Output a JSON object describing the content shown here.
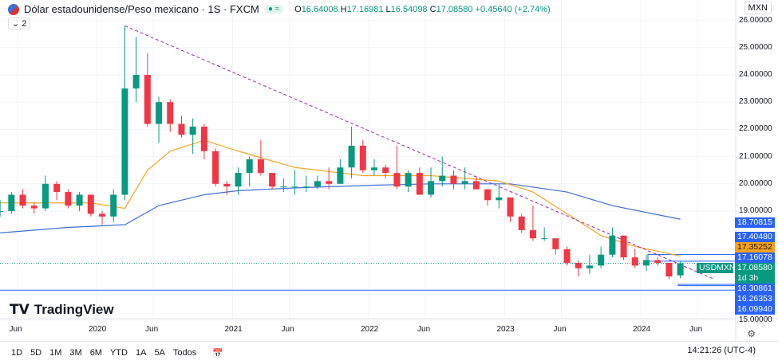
{
  "header": {
    "title": "Dólar estadounidense/Peso mexicano · 1S · FXCM",
    "o": "16.64008",
    "h": "17.16981",
    "l": "16.54098",
    "c": "17.08580",
    "change": "+0.45640 (+2.74%)",
    "collapse": "2",
    "currency": "MXN"
  },
  "symbol_tag": "USDMXN",
  "countdown": "1d 3h",
  "brand": "TradingView",
  "price_labels": [
    {
      "v": 18.70815,
      "t": "18.70815",
      "color": "#2962ff"
    },
    {
      "v": 17.4048,
      "t": "17.40480",
      "color": "#2962ff"
    },
    {
      "v": 17.35252,
      "t": "17.35252",
      "color": "#f7a21b"
    },
    {
      "v": 17.16078,
      "t": "17.16078",
      "color": "#2962ff"
    },
    {
      "v": 17.0858,
      "t": "17.08580",
      "color": "#089981"
    },
    {
      "v": 16.30861,
      "t": "16.30861",
      "color": "#2962ff"
    },
    {
      "v": 16.26353,
      "t": "16.26353",
      "color": "#2962ff"
    },
    {
      "v": 16.0994,
      "t": "16.09940",
      "color": "#2962ff"
    }
  ],
  "toolbar": {
    "ranges": [
      "1D",
      "5D",
      "1M",
      "3M",
      "6M",
      "YTD",
      "1A",
      "5A",
      "Todos"
    ],
    "time": "14:21:26 (UTC-4)"
  },
  "chart_data": {
    "type": "candlestick",
    "ylim": [
      15,
      26.2
    ],
    "y_ticks": [
      "26.00000",
      "25.00000",
      "24.00000",
      "23.00000",
      "22.00000",
      "21.00000",
      "20.00000",
      "19.00000",
      "15.00000"
    ],
    "x_ticks": [
      [
        "Jun",
        "2019-06"
      ],
      [
        "2020",
        "2020-01"
      ],
      [
        "Jun",
        "2020-06"
      ],
      [
        "2021",
        "2021-01"
      ],
      [
        "Jun",
        "2021-06"
      ],
      [
        "2022",
        "2022-01"
      ],
      [
        "Jun",
        "2022-06"
      ],
      [
        "2023",
        "2023-01"
      ],
      [
        "Jun",
        "2023-06"
      ],
      [
        "2024",
        "2024-01"
      ],
      [
        "Jun",
        "2024-06"
      ]
    ],
    "ohlc": [
      [
        "2019-04",
        19.0,
        19.4,
        18.8,
        19.0
      ],
      [
        "2019-05",
        19.0,
        19.7,
        18.9,
        19.6
      ],
      [
        "2019-06",
        19.6,
        19.8,
        19.1,
        19.2
      ],
      [
        "2019-07",
        19.2,
        19.3,
        18.9,
        19.1
      ],
      [
        "2019-08",
        19.1,
        20.3,
        19.0,
        20.0
      ],
      [
        "2019-09",
        20.0,
        20.1,
        19.4,
        19.7
      ],
      [
        "2019-10",
        19.7,
        19.8,
        19.1,
        19.2
      ],
      [
        "2019-11",
        19.2,
        19.7,
        19.0,
        19.6
      ],
      [
        "2019-12",
        19.6,
        19.6,
        18.8,
        18.9
      ],
      [
        "2020-01",
        18.9,
        19.0,
        18.5,
        18.8
      ],
      [
        "2020-02",
        18.8,
        19.8,
        18.6,
        19.6
      ],
      [
        "2020-03",
        19.6,
        25.8,
        19.4,
        23.5
      ],
      [
        "2020-04",
        23.5,
        25.4,
        23.0,
        24.0
      ],
      [
        "2020-05",
        24.0,
        24.8,
        22.1,
        22.2
      ],
      [
        "2020-06",
        22.2,
        23.2,
        21.5,
        23.0
      ],
      [
        "2020-07",
        23.0,
        23.1,
        21.9,
        22.2
      ],
      [
        "2020-08",
        22.2,
        22.5,
        21.7,
        21.8
      ],
      [
        "2020-09",
        21.8,
        22.4,
        21.1,
        22.1
      ],
      [
        "2020-10",
        22.1,
        22.2,
        20.9,
        21.2
      ],
      [
        "2020-11",
        21.2,
        21.3,
        19.9,
        20.0
      ],
      [
        "2020-12",
        20.0,
        20.1,
        19.6,
        19.9
      ],
      [
        "2021-01",
        19.9,
        20.6,
        19.6,
        20.4
      ],
      [
        "2021-02",
        20.4,
        21.0,
        19.9,
        20.9
      ],
      [
        "2021-03",
        20.9,
        21.6,
        20.3,
        20.4
      ],
      [
        "2021-04",
        20.4,
        20.4,
        19.8,
        19.9
      ],
      [
        "2021-05",
        19.9,
        20.2,
        19.7,
        19.9
      ],
      [
        "2021-06",
        19.9,
        20.5,
        19.6,
        19.9
      ],
      [
        "2021-07",
        19.9,
        20.3,
        19.7,
        19.9
      ],
      [
        "2021-08",
        19.9,
        20.3,
        19.8,
        20.1
      ],
      [
        "2021-09",
        20.1,
        20.6,
        19.8,
        20.0
      ],
      [
        "2021-10",
        20.0,
        20.9,
        20.1,
        20.6
      ],
      [
        "2021-11",
        20.6,
        22.1,
        20.2,
        21.4
      ],
      [
        "2021-12",
        21.4,
        21.6,
        20.4,
        20.5
      ],
      [
        "2022-01",
        20.5,
        20.9,
        20.3,
        20.6
      ],
      [
        "2022-02",
        20.6,
        20.7,
        20.2,
        20.4
      ],
      [
        "2022-03",
        20.4,
        21.4,
        19.8,
        19.9
      ],
      [
        "2022-04",
        19.9,
        20.5,
        19.7,
        20.4
      ],
      [
        "2022-05",
        20.4,
        20.6,
        19.6,
        19.6
      ],
      [
        "2022-06",
        19.6,
        20.6,
        19.5,
        20.1
      ],
      [
        "2022-07",
        20.1,
        21.0,
        19.9,
        20.3
      ],
      [
        "2022-08",
        20.3,
        20.5,
        19.8,
        20.0
      ],
      [
        "2022-09",
        20.0,
        20.6,
        19.8,
        20.1
      ],
      [
        "2022-10",
        20.1,
        20.3,
        19.8,
        19.8
      ],
      [
        "2022-11",
        19.8,
        19.8,
        19.2,
        19.4
      ],
      [
        "2022-12",
        19.4,
        20.0,
        19.1,
        19.5
      ],
      [
        "2023-01",
        19.5,
        19.5,
        18.6,
        18.8
      ],
      [
        "2023-02",
        18.8,
        18.9,
        18.2,
        18.3
      ],
      [
        "2023-03",
        18.3,
        19.2,
        17.9,
        18.0
      ],
      [
        "2023-04",
        18.0,
        18.4,
        17.9,
        18.0
      ],
      [
        "2023-05",
        18.0,
        18.0,
        17.4,
        17.6
      ],
      [
        "2023-06",
        17.6,
        17.7,
        17.0,
        17.1
      ],
      [
        "2023-07",
        17.1,
        17.2,
        16.6,
        16.9
      ],
      [
        "2023-08",
        16.9,
        17.4,
        16.7,
        17.0
      ],
      [
        "2023-09",
        17.0,
        17.7,
        16.9,
        17.4
      ],
      [
        "2023-10",
        17.4,
        18.4,
        17.3,
        18.1
      ],
      [
        "2023-11",
        18.1,
        18.1,
        17.2,
        17.3
      ],
      [
        "2023-12",
        17.3,
        17.6,
        16.9,
        17.0
      ],
      [
        "2024-01",
        17.0,
        17.4,
        16.8,
        17.2
      ],
      [
        "2024-02",
        17.2,
        17.3,
        17.0,
        17.1
      ],
      [
        "2024-03",
        17.1,
        17.1,
        16.5,
        16.6
      ],
      [
        "2024-04",
        16.64,
        17.17,
        16.54,
        17.0858
      ]
    ],
    "ma_orange": [
      [
        "2019-04",
        19.3
      ],
      [
        "2019-12",
        19.3
      ],
      [
        "2020-03",
        19.1
      ],
      [
        "2020-05",
        20.5
      ],
      [
        "2020-07",
        21.2
      ],
      [
        "2020-10",
        21.6
      ],
      [
        "2021-01",
        21.2
      ],
      [
        "2021-06",
        20.6
      ],
      [
        "2021-12",
        20.3
      ],
      [
        "2022-06",
        20.3
      ],
      [
        "2022-12",
        20.1
      ],
      [
        "2023-03",
        19.7
      ],
      [
        "2023-06",
        18.9
      ],
      [
        "2023-09",
        18.1
      ],
      [
        "2023-12",
        17.7
      ],
      [
        "2024-04",
        17.35
      ]
    ],
    "ma_blue": [
      [
        "2019-04",
        18.2
      ],
      [
        "2019-10",
        18.4
      ],
      [
        "2020-03",
        18.5
      ],
      [
        "2020-06",
        19.2
      ],
      [
        "2020-10",
        19.6
      ],
      [
        "2021-01",
        19.75
      ],
      [
        "2021-06",
        19.85
      ],
      [
        "2022-01",
        19.95
      ],
      [
        "2022-06",
        20.0
      ],
      [
        "2023-01",
        20.0
      ],
      [
        "2023-06",
        19.7
      ],
      [
        "2023-10",
        19.2
      ],
      [
        "2024-04",
        18.7
      ]
    ],
    "trendline": [
      [
        "2020-03",
        25.8
      ],
      [
        "2024-07",
        16.5
      ]
    ],
    "hlines": [
      16.0994
    ]
  }
}
